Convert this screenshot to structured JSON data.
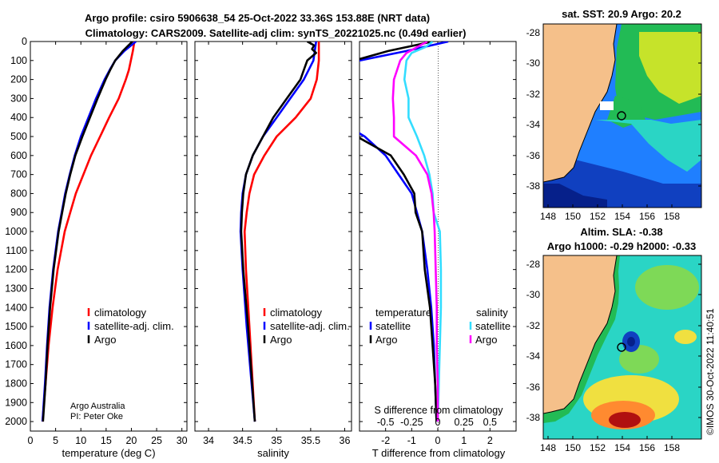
{
  "title_line1": "Argo profile: csiro 5906638_54 25-Oct-2022 33.36S 153.88E (NRT data)",
  "title_line2": "Climatology: CARS2009. Satellite-adj clim: synTS_20221025.nc (0.49d earlier)",
  "credit_line1": "Argo Australia",
  "credit_line2": "PI: Peter Oke",
  "watermark": "©IMOS 30-Oct-2022 11:40:51",
  "colors": {
    "climatology": "#ff0000",
    "satellite": "#0000ff",
    "argo": "#000000",
    "sat_salinity": "#33ddff",
    "argo_salinity": "#ff00ff",
    "land": "#f5c08a"
  },
  "depth_ticks": [
    0,
    100,
    200,
    300,
    400,
    500,
    600,
    700,
    800,
    900,
    1000,
    1100,
    1200,
    1300,
    1400,
    1500,
    1600,
    1700,
    1800,
    1900,
    2000
  ],
  "legend_profile": [
    "climatology",
    "satellite-adj. clim.",
    "Argo"
  ],
  "legend_diff": {
    "temp_header": "temperature",
    "sal_header": "salinity",
    "satellite": "satellite",
    "argo": "Argo"
  },
  "sst_title": "sat. SST: 20.9 Argo: 20.2",
  "sla_title1": "Altim. SLA: -0.38",
  "sla_title2": "Argo h1000: -0.29 h2000: -0.33",
  "map_lat_ticks": [
    "-28",
    "-30",
    "-32",
    "-34",
    "-36",
    "-38"
  ],
  "map_lon_ticks": [
    "148",
    "150",
    "152",
    "154",
    "156",
    "158"
  ],
  "chart_data": [
    {
      "type": "line",
      "panel": "temperature",
      "xlabel": "temperature (deg C)",
      "ylabel": "depth (m)",
      "xlim": [
        0,
        31
      ],
      "ylim": [
        2050,
        0
      ],
      "xticks": [
        0,
        5,
        10,
        15,
        20,
        25,
        30
      ],
      "series": [
        {
          "name": "climatology",
          "depth": [
            0,
            50,
            100,
            150,
            200,
            300,
            400,
            500,
            600,
            700,
            800,
            900,
            1000,
            1200,
            1400,
            1600,
            1800,
            2000
          ],
          "values": [
            20.6,
            20.3,
            19.9,
            19.5,
            18.9,
            17.5,
            15.6,
            13.8,
            12.0,
            10.5,
            9.0,
            7.9,
            6.8,
            5.4,
            4.4,
            3.6,
            3.0,
            2.4
          ]
        },
        {
          "name": "satellite-adj. clim.",
          "depth": [
            0,
            50,
            100,
            150,
            200,
            300,
            400,
            500,
            600,
            700,
            800,
            900,
            1000,
            1200,
            1400,
            1600,
            1800,
            2000
          ],
          "values": [
            20.9,
            18.6,
            16.8,
            15.7,
            14.7,
            13.0,
            11.5,
            10.0,
            8.8,
            7.8,
            6.9,
            6.2,
            5.5,
            4.5,
            3.8,
            3.3,
            2.9,
            2.4
          ]
        },
        {
          "name": "Argo",
          "depth": [
            0,
            50,
            100,
            150,
            200,
            300,
            400,
            500,
            600,
            700,
            800,
            900,
            1000,
            1200,
            1400,
            1600,
            1800,
            2000
          ],
          "values": [
            20.2,
            18.3,
            16.8,
            15.8,
            14.9,
            13.3,
            11.8,
            10.3,
            8.9,
            7.9,
            7.0,
            6.3,
            5.6,
            4.6,
            3.9,
            3.4,
            3.0,
            2.5
          ]
        }
      ]
    },
    {
      "type": "line",
      "panel": "salinity",
      "xlabel": "salinity",
      "xlim": [
        33.8,
        36.1
      ],
      "ylim": [
        2050,
        0
      ],
      "xticks": [
        34,
        34.5,
        35,
        35.5,
        36
      ],
      "series": [
        {
          "name": "climatology",
          "depth": [
            0,
            100,
            200,
            300,
            400,
            500,
            600,
            700,
            800,
            900,
            1000,
            1200,
            1500,
            2000
          ],
          "values": [
            35.62,
            35.62,
            35.59,
            35.5,
            35.28,
            35.0,
            34.82,
            34.67,
            34.6,
            34.56,
            34.53,
            34.55,
            34.6,
            34.68
          ]
        },
        {
          "name": "satellite-adj. clim.",
          "depth": [
            0,
            100,
            200,
            300,
            400,
            500,
            600,
            700,
            800,
            900,
            1000,
            1200,
            1500,
            2000
          ],
          "values": [
            35.58,
            35.54,
            35.4,
            35.2,
            35.0,
            34.8,
            34.65,
            34.55,
            34.5,
            34.48,
            34.47,
            34.5,
            34.56,
            34.68
          ]
        },
        {
          "name": "Argo",
          "depth": [
            0,
            20,
            40,
            60,
            100,
            150,
            200,
            300,
            400,
            500,
            600,
            700,
            800,
            900,
            1000,
            1200,
            1500,
            2000
          ],
          "values": [
            35.45,
            35.55,
            35.52,
            35.58,
            35.45,
            35.4,
            35.35,
            35.15,
            34.95,
            34.8,
            34.65,
            34.55,
            34.51,
            34.49,
            34.48,
            34.51,
            34.58,
            34.68
          ]
        }
      ]
    },
    {
      "type": "line",
      "panel": "difference",
      "xlabel": "T difference from climatology",
      "x2label": "S difference from climatology",
      "xlim": [
        -3,
        3
      ],
      "ylim": [
        2050,
        0
      ],
      "xticks": [
        -2,
        -1,
        0,
        1,
        2
      ],
      "x2ticks": [
        "-0.5",
        "-0.25",
        "0",
        "0.25",
        "0.5"
      ],
      "series": [
        {
          "name": "temperature satellite",
          "depth": [
            0,
            50,
            100,
            200,
            300,
            400,
            500,
            600,
            700,
            800,
            900,
            1000,
            1200,
            1400,
            1600,
            1800,
            2000
          ],
          "values": [
            0.4,
            -1.2,
            -3.0,
            -4.0,
            -4.4,
            -4.0,
            -2.8,
            -2.0,
            -1.5,
            -1.0,
            -0.8,
            -0.6,
            -0.4,
            -0.25,
            -0.15,
            -0.1,
            -0.05
          ]
        },
        {
          "name": "temperature Argo",
          "depth": [
            0,
            50,
            100,
            200,
            300,
            400,
            500,
            600,
            700,
            800,
            900,
            1000,
            1200,
            1400,
            1600,
            1800,
            2000
          ],
          "values": [
            -0.2,
            -1.9,
            -3.2,
            -4.2,
            -4.5,
            -3.8,
            -3.1,
            -1.8,
            -1.3,
            -0.9,
            -0.85,
            -0.6,
            -0.5,
            -0.3,
            -0.2,
            -0.1,
            -0.05
          ]
        },
        {
          "name": "salinity satellite",
          "depth": [
            0,
            30,
            60,
            100,
            200,
            300,
            400,
            500,
            600,
            700,
            800,
            900,
            1000,
            1200,
            1400,
            1600,
            1800,
            2000
          ],
          "values": [
            -0.05,
            -0.12,
            -0.25,
            -0.3,
            -0.32,
            -0.28,
            -0.28,
            -0.2,
            -0.13,
            -0.08,
            -0.05,
            -0.04,
            0.02,
            0.03,
            0.03,
            0.02,
            0.01,
            0.0
          ]
        },
        {
          "name": "salinity Argo",
          "depth": [
            0,
            30,
            60,
            100,
            200,
            300,
            400,
            500,
            600,
            700,
            800,
            900,
            1000,
            1200,
            1400,
            1600,
            1800,
            2000
          ],
          "values": [
            -0.1,
            -0.2,
            -0.3,
            -0.36,
            -0.42,
            -0.43,
            -0.42,
            -0.42,
            -0.21,
            -0.1,
            -0.06,
            -0.04,
            -0.03,
            -0.02,
            -0.01,
            -0.01,
            0.0,
            0.0
          ]
        }
      ]
    }
  ]
}
